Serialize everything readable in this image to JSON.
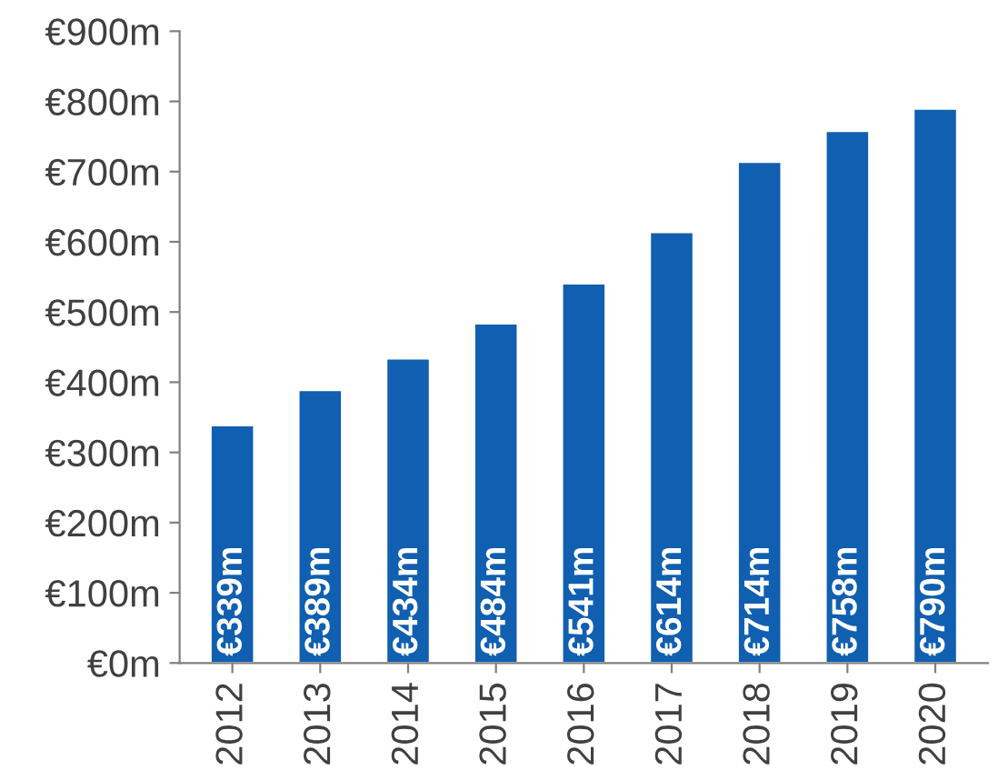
{
  "chart_data": {
    "type": "bar",
    "categories": [
      "2012",
      "2013",
      "2014",
      "2015",
      "2016",
      "2017",
      "2018",
      "2019",
      "2020"
    ],
    "values": [
      339,
      389,
      434,
      484,
      541,
      614,
      714,
      758,
      790
    ],
    "value_labels": [
      "€339m",
      "€389m",
      "€434m",
      "€484m",
      "€541m",
      "€614m",
      "€714m",
      "€758m",
      "€790m"
    ],
    "color": "#105fb0",
    "ylim": [
      0,
      900
    ],
    "yticks": [
      {
        "value": 0,
        "label": "€0m"
      },
      {
        "value": 100,
        "label": "€100m"
      },
      {
        "value": 200,
        "label": "€200m"
      },
      {
        "value": 300,
        "label": "€300m"
      },
      {
        "value": 400,
        "label": "€400m"
      },
      {
        "value": 500,
        "label": "€500m"
      },
      {
        "value": 600,
        "label": "€600m"
      },
      {
        "value": 700,
        "label": "€700m"
      },
      {
        "value": 800,
        "label": "€800m"
      },
      {
        "value": 900,
        "label": "€900m"
      }
    ],
    "grid": false,
    "legend": false
  }
}
